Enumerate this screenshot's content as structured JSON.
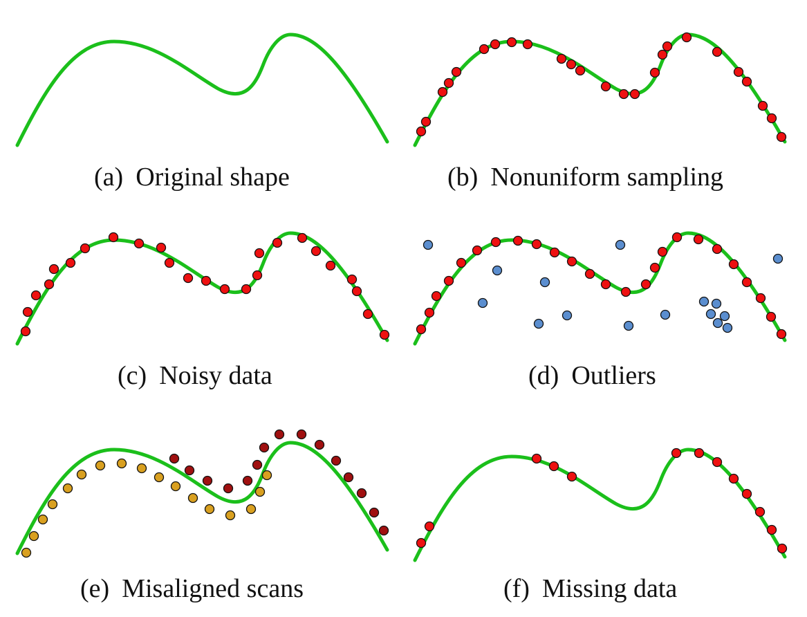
{
  "colors": {
    "curve": "#1bbf1b",
    "sample_dot": "#ee1111",
    "outlier_dot": "#5b8ecf",
    "scan_dark": "#a01010",
    "scan_orange": "#d9a020",
    "dot_stroke": "#111111"
  },
  "panels": [
    {
      "id": "a",
      "tag": "(a)",
      "label": "Original shape",
      "variant": "curve-only"
    },
    {
      "id": "b",
      "tag": "(b)",
      "label": "Nonuniform sampling",
      "variant": "nonuniform-samples"
    },
    {
      "id": "c",
      "tag": "(c)",
      "label": "Noisy data",
      "variant": "noisy-samples"
    },
    {
      "id": "d",
      "tag": "(d)",
      "label": "Outliers",
      "variant": "samples-with-outliers"
    },
    {
      "id": "e",
      "tag": "(e)",
      "label": "Misaligned scans",
      "variant": "two-shifted-scans"
    },
    {
      "id": "f",
      "tag": "(f)",
      "label": "Missing data",
      "variant": "samples-with-gaps"
    }
  ]
}
